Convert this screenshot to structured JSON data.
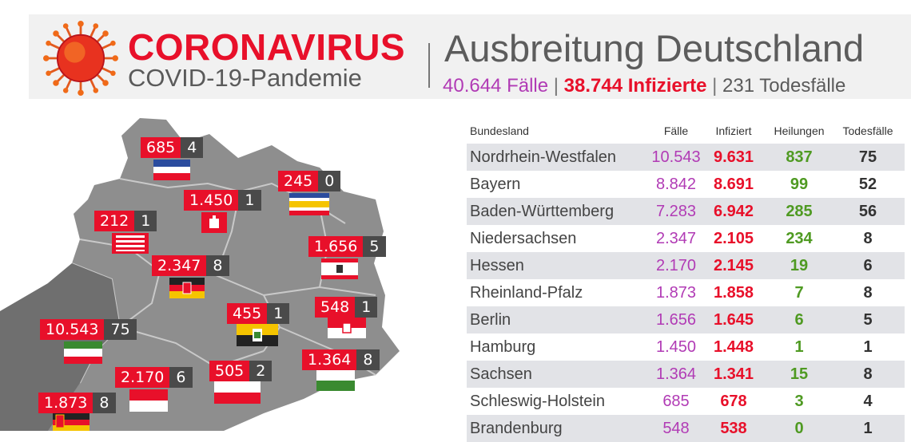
{
  "header": {
    "brand_title": "CORONAVIRUS",
    "brand_subtitle": "COVID-19-Pandemie",
    "main_title": "Ausbreitung Deutschland",
    "cases_text": "40.644 Fälle",
    "infected_text": "38.744 Infizierte",
    "deaths_text": "231 Todesfälle",
    "separator": "|"
  },
  "map_badges": [
    {
      "cases": "685",
      "deaths": "4"
    },
    {
      "cases": "245",
      "deaths": "0"
    },
    {
      "cases": "1.450",
      "deaths": "1"
    },
    {
      "cases": "212",
      "deaths": "1"
    },
    {
      "cases": "1.656",
      "deaths": "5"
    },
    {
      "cases": "2.347",
      "deaths": "8"
    },
    {
      "cases": "455",
      "deaths": "1"
    },
    {
      "cases": "548",
      "deaths": "1"
    },
    {
      "cases": "10.543",
      "deaths": "75"
    },
    {
      "cases": "1.364",
      "deaths": "8"
    },
    {
      "cases": "2.170",
      "deaths": "6"
    },
    {
      "cases": "505",
      "deaths": "2"
    },
    {
      "cases": "1.873",
      "deaths": "8"
    }
  ],
  "table": {
    "headers": {
      "state": "Bundesland",
      "cases": "Fälle",
      "infected": "Infiziert",
      "recovered": "Heilungen",
      "deaths": "Todesfälle"
    },
    "rows": [
      {
        "state": "Nordrhein-Westfalen",
        "cases": "10.543",
        "infected": "9.631",
        "recovered": "837",
        "deaths": "75"
      },
      {
        "state": "Bayern",
        "cases": "8.842",
        "infected": "8.691",
        "recovered": "99",
        "deaths": "52"
      },
      {
        "state": "Baden-Württemberg",
        "cases": "7.283",
        "infected": "6.942",
        "recovered": "285",
        "deaths": "56"
      },
      {
        "state": "Niedersachsen",
        "cases": "2.347",
        "infected": "2.105",
        "recovered": "234",
        "deaths": "8"
      },
      {
        "state": "Hessen",
        "cases": "2.170",
        "infected": "2.145",
        "recovered": "19",
        "deaths": "6"
      },
      {
        "state": "Rheinland-Pfalz",
        "cases": "1.873",
        "infected": "1.858",
        "recovered": "7",
        "deaths": "8"
      },
      {
        "state": "Berlin",
        "cases": "1.656",
        "infected": "1.645",
        "recovered": "6",
        "deaths": "5"
      },
      {
        "state": "Hamburg",
        "cases": "1.450",
        "infected": "1.448",
        "recovered": "1",
        "deaths": "1"
      },
      {
        "state": "Sachsen",
        "cases": "1.364",
        "infected": "1.341",
        "recovered": "15",
        "deaths": "8"
      },
      {
        "state": "Schleswig-Holstein",
        "cases": "685",
        "infected": "678",
        "recovered": "3",
        "deaths": "4"
      },
      {
        "state": "Brandenburg",
        "cases": "548",
        "infected": "538",
        "recovered": "0",
        "deaths": "1"
      }
    ]
  },
  "colors": {
    "red": "#e8102a",
    "magenta": "#b13bb5",
    "green": "#4f9a22",
    "dark_badge": "#4a4a4a",
    "map_gray": "#8e8e8e"
  }
}
